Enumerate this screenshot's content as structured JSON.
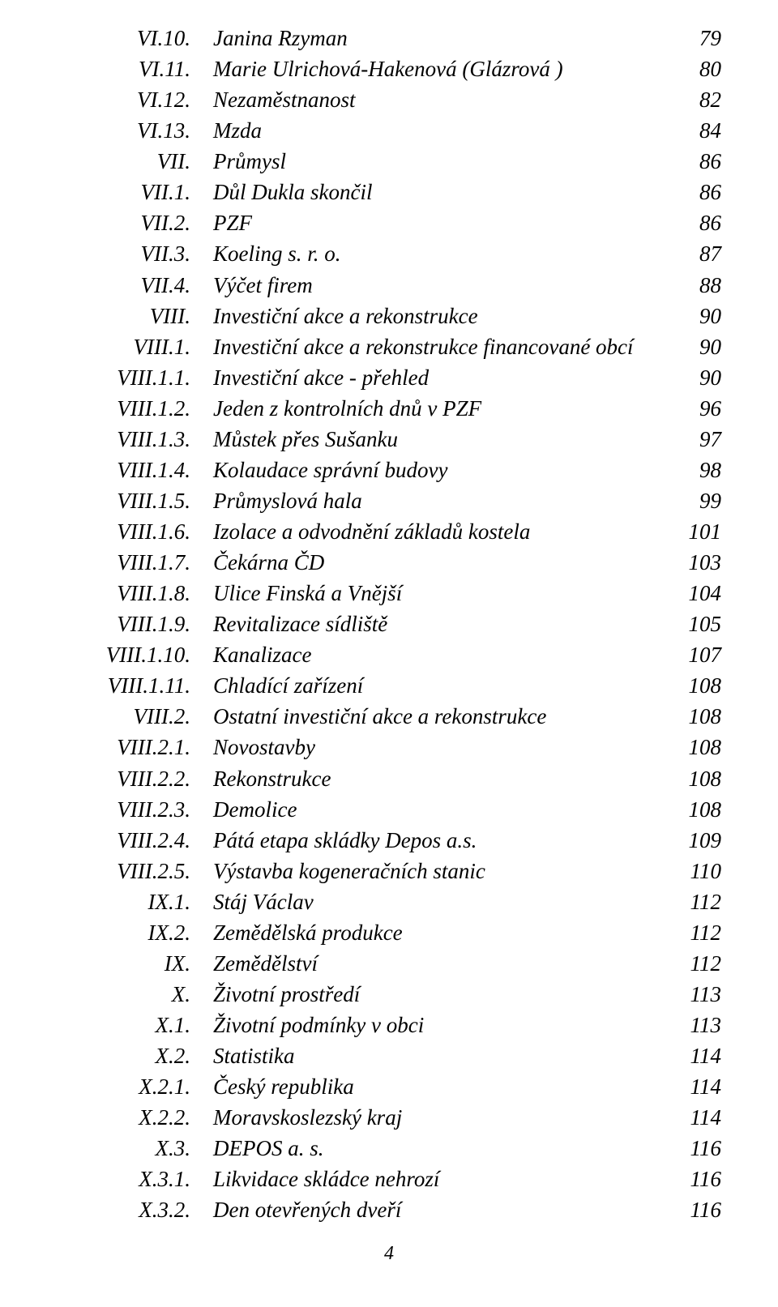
{
  "entries": [
    {
      "num": "VI.10.",
      "title": "Janina Rzyman",
      "page": "79"
    },
    {
      "num": "VI.11.",
      "title": "Marie Ulrichová-Hakenová (Glázrová )",
      "page": "80"
    },
    {
      "num": "VI.12.",
      "title": "Nezaměstnanost",
      "page": "82"
    },
    {
      "num": "VI.13.",
      "title": "Mzda",
      "page": "84"
    },
    {
      "num": "VII.",
      "title": "Průmysl",
      "page": "86"
    },
    {
      "num": "VII.1.",
      "title": "Důl Dukla skončil",
      "page": "86"
    },
    {
      "num": "VII.2.",
      "title": "PZF",
      "page": "86"
    },
    {
      "num": "VII.3.",
      "title": "Koeling s. r. o.",
      "page": "87"
    },
    {
      "num": "VII.4.",
      "title": "Výčet firem",
      "page": "88"
    },
    {
      "num": "VIII.",
      "title": "Investiční akce a rekonstrukce",
      "page": "90"
    },
    {
      "num": "VIII.1.",
      "title": "Investiční akce a rekonstrukce financované obcí",
      "page": "90"
    },
    {
      "num": "VIII.1.1.",
      "title": "Investiční akce - přehled",
      "page": "90"
    },
    {
      "num": "VIII.1.2.",
      "title": "Jeden z kontrolních dnů v PZF",
      "page": "96"
    },
    {
      "num": "VIII.1.3.",
      "title": "Můstek přes Sušanku",
      "page": "97"
    },
    {
      "num": "VIII.1.4.",
      "title": "Kolaudace správní budovy",
      "page": "98"
    },
    {
      "num": "VIII.1.5.",
      "title": "Průmyslová hala",
      "page": "99"
    },
    {
      "num": "VIII.1.6.",
      "title": "Izolace a odvodnění základů kostela",
      "page": "101"
    },
    {
      "num": "VIII.1.7.",
      "title": "Čekárna ČD",
      "page": "103"
    },
    {
      "num": "VIII.1.8.",
      "title": "Ulice Finská a Vnější",
      "page": "104"
    },
    {
      "num": "VIII.1.9.",
      "title": "Revitalizace sídliště",
      "page": "105"
    },
    {
      "num": "VIII.1.10.",
      "title": "Kanalizace",
      "page": "107"
    },
    {
      "num": "VIII.1.11.",
      "title": "Chladící zařízení",
      "page": "108"
    },
    {
      "num": "VIII.2.",
      "title": "Ostatní investiční akce a rekonstrukce",
      "page": "108"
    },
    {
      "num": "VIII.2.1.",
      "title": "Novostavby",
      "page": "108"
    },
    {
      "num": "VIII.2.2.",
      "title": "Rekonstrukce",
      "page": "108"
    },
    {
      "num": "VIII.2.3.",
      "title": "Demolice",
      "page": "108"
    },
    {
      "num": "VIII.2.4.",
      "title": "Pátá etapa skládky Depos a.s.",
      "page": "109"
    },
    {
      "num": "VIII.2.5.",
      "title": "Výstavba kogeneračních stanic",
      "page": "110"
    },
    {
      "num": "IX.1.",
      "title": "Stáj Václav",
      "page": "112"
    },
    {
      "num": "IX.2.",
      "title": "Zemědělská produkce",
      "page": "112"
    },
    {
      "num": "IX.",
      "title": "Zemědělství",
      "page": "112"
    },
    {
      "num": "X.",
      "title": "Životní prostředí",
      "page": "113"
    },
    {
      "num": "X.1.",
      "title": "Životní podmínky v obci",
      "page": "113"
    },
    {
      "num": "X.2.",
      "title": "Statistika",
      "page": "114"
    },
    {
      "num": "X.2.1.",
      "title": "Český republika",
      "page": "114"
    },
    {
      "num": "X.2.2.",
      "title": "Moravskoslezský kraj",
      "page": "114"
    },
    {
      "num": "X.3.",
      "title": "DEPOS a. s.",
      "page": "116"
    },
    {
      "num": "X.3.1.",
      "title": "Likvidace skládce nehrozí",
      "page": "116"
    },
    {
      "num": "X.3.2.",
      "title": "Den otevřených dveří",
      "page": "116"
    }
  ],
  "footer_page_number": "4"
}
